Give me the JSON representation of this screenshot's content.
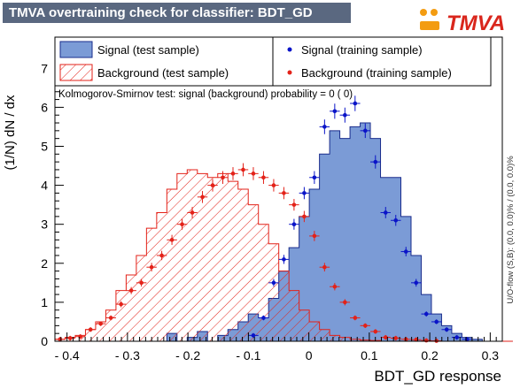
{
  "title": "TMVA overtraining check for classifier: BDT_GD",
  "logo_text": "TMVA",
  "ks_text": "Kolmogorov-Smirnov test: signal (background) probability =     0 (    0)",
  "side_text": "U/O-flow (S,B): (0.0, 0.0)% / (0.0, 0.0)%",
  "colors": {
    "signal_fill": "#7b9bd6",
    "signal_line": "#1a2c8c",
    "background_line": "#e32219",
    "point_signal": "#0a14c8",
    "point_background": "#e32219",
    "title_bg": "#5a6880"
  },
  "chart_data": {
    "type": "histogram",
    "xlabel": "BDT_GD response",
    "ylabel": "(1/N) dN / dx",
    "xlim": [
      -0.42,
      0.32
    ],
    "ylim": [
      0,
      7.8
    ],
    "xticks": [
      "- 0.4",
      "- 0.3",
      "- 0.2",
      "- 0.1",
      "0",
      "0.1",
      "0.2",
      "0.3"
    ],
    "xtick_values": [
      -0.4,
      -0.3,
      -0.2,
      -0.1,
      0,
      0.1,
      0.2,
      0.3
    ],
    "yticks": [
      "0",
      "1",
      "2",
      "3",
      "4",
      "5",
      "6",
      "7"
    ],
    "legend": [
      {
        "label": "Signal (test sample)",
        "kind": "signal-fill"
      },
      {
        "label": "Background (test sample)",
        "kind": "background-hatch"
      },
      {
        "label": "Signal (training sample)",
        "kind": "signal-point"
      },
      {
        "label": "Background (training sample)",
        "kind": "background-point"
      }
    ],
    "bin_low": -0.42,
    "bin_width": 0.01683,
    "signal_test": [
      0,
      0,
      0,
      0,
      0,
      0,
      0,
      0,
      0,
      0,
      0,
      0.2,
      0,
      0.1,
      0.25,
      0,
      0.15,
      0.3,
      0.5,
      0.7,
      0.6,
      1.1,
      1.8,
      2.4,
      3.2,
      3.9,
      4.8,
      5.4,
      5.2,
      5.5,
      5.6,
      5.2,
      4.2,
      4.2,
      3.2,
      2.2,
      1.2,
      0.7,
      0.4,
      0.2,
      0.1,
      0.05,
      0,
      0,
      0
    ],
    "background_test": [
      0.05,
      0.1,
      0.15,
      0.3,
      0.5,
      0.8,
      1.3,
      1.7,
      2.2,
      2.9,
      3.3,
      3.9,
      4.3,
      4.4,
      4.3,
      4.2,
      4.3,
      4.1,
      3.9,
      3.5,
      3.0,
      2.5,
      1.8,
      1.3,
      0.8,
      0.5,
      0.3,
      0.15,
      0.1,
      0.05,
      0.03,
      0.02,
      0,
      0,
      0,
      0,
      0,
      0,
      0,
      0,
      0,
      0,
      0,
      0,
      0
    ],
    "signal_train": [
      0,
      0,
      0,
      0,
      0,
      0,
      0,
      0,
      0,
      0,
      0,
      0,
      0,
      0,
      0,
      0,
      0,
      0,
      0,
      0.15,
      0.6,
      1.5,
      2.1,
      3.0,
      3.8,
      4.2,
      5.5,
      5.9,
      5.8,
      6.1,
      5.4,
      4.6,
      3.3,
      3.1,
      2.3,
      1.5,
      0.7,
      0.5,
      0.3,
      0.1,
      0.05,
      0,
      0,
      0,
      0
    ],
    "background_train": [
      0.05,
      0.08,
      0.12,
      0.3,
      0.45,
      0.6,
      0.95,
      1.3,
      1.5,
      1.9,
      2.2,
      2.6,
      3.0,
      3.3,
      3.7,
      4.0,
      4.2,
      4.3,
      4.4,
      4.3,
      4.2,
      4.0,
      3.8,
      3.5,
      3.2,
      2.7,
      1.9,
      1.4,
      1.0,
      0.6,
      0.4,
      0.25,
      0.1,
      0.08,
      0.05,
      0.04,
      0.02,
      0.01,
      0,
      0,
      0,
      0,
      0,
      0,
      0
    ]
  }
}
